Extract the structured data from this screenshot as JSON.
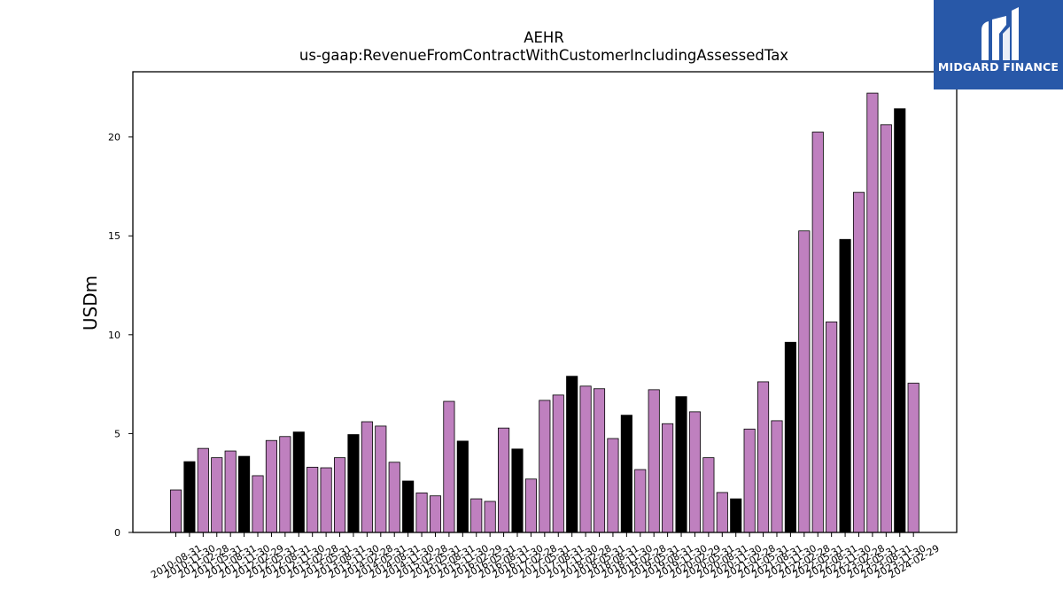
{
  "chart_data": {
    "type": "bar",
    "title": "AEHR",
    "subtitle": "us-gaap:RevenueFromContractWithCustomerIncludingAssessedTax",
    "xlabel": "",
    "ylabel": "USDm",
    "ylim": [
      0,
      23.3
    ],
    "yticks": [
      0,
      5,
      10,
      15,
      20
    ],
    "grid": false,
    "colors": {
      "quarter": "#bf80bf",
      "fiscal_year_end": "#000000",
      "edge": "#000000"
    },
    "categories": [
      "2010-08-31",
      "2010-11-30",
      "2011-02-28",
      "2011-05-31",
      "2011-08-31",
      "2011-11-30",
      "2012-02-29",
      "2012-05-31",
      "2012-08-31",
      "2012-11-30",
      "2013-02-28",
      "2013-05-31",
      "2013-08-31",
      "2013-11-30",
      "2014-02-28",
      "2014-05-31",
      "2014-08-31",
      "2014-11-30",
      "2015-02-28",
      "2015-05-31",
      "2015-08-31",
      "2015-11-30",
      "2016-02-29",
      "2016-05-31",
      "2016-08-31",
      "2016-11-30",
      "2017-02-28",
      "2017-05-31",
      "2017-08-31",
      "2017-11-30",
      "2018-02-28",
      "2018-05-31",
      "2018-08-31",
      "2018-11-30",
      "2019-02-28",
      "2019-05-31",
      "2019-08-31",
      "2019-11-30",
      "2020-02-29",
      "2020-05-31",
      "2020-08-31",
      "2020-11-30",
      "2021-02-28",
      "2021-05-31",
      "2021-08-31",
      "2021-11-30",
      "2022-02-28",
      "2022-05-31",
      "2022-08-31",
      "2022-11-30",
      "2023-02-28",
      "2023-05-31",
      "2023-08-31",
      "2023-11-30",
      "2024-02-29"
    ],
    "values": [
      2.15,
      3.58,
      4.25,
      3.78,
      4.12,
      3.85,
      2.87,
      4.65,
      4.85,
      5.08,
      3.3,
      3.27,
      3.78,
      4.95,
      5.6,
      5.38,
      3.55,
      2.6,
      2.0,
      1.85,
      6.63,
      4.62,
      1.7,
      1.57,
      5.28,
      4.22,
      2.7,
      6.68,
      6.95,
      7.9,
      7.4,
      7.27,
      4.75,
      5.93,
      3.18,
      7.22,
      5.5,
      6.87,
      6.1,
      3.78,
      2.02,
      1.7,
      5.23,
      7.62,
      5.65,
      9.62,
      15.25,
      20.25,
      10.65,
      14.82,
      17.2,
      22.22,
      20.62,
      21.43,
      7.55
    ],
    "fiscal_year_end": [
      false,
      true,
      false,
      false,
      false,
      true,
      false,
      false,
      false,
      true,
      false,
      false,
      false,
      true,
      false,
      false,
      false,
      true,
      false,
      false,
      false,
      true,
      false,
      false,
      false,
      true,
      false,
      false,
      false,
      true,
      false,
      false,
      false,
      true,
      false,
      false,
      false,
      true,
      false,
      false,
      false,
      true,
      false,
      false,
      false,
      true,
      false,
      false,
      false,
      true,
      false,
      false,
      false,
      true,
      false
    ]
  },
  "logo": {
    "text": "MIDGARD FINANCE",
    "background": "#2858a8"
  }
}
